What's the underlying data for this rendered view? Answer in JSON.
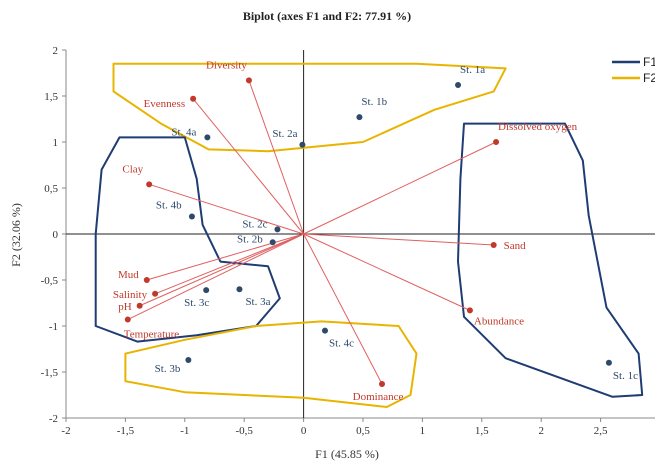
{
  "chart_data": {
    "type": "scatter",
    "title": "Biplot (axes F1 and F2: 77.91 %)",
    "xlabel": "F1 (45.85 %)",
    "ylabel": "F2 (32.06 %)",
    "xlim": [
      -2,
      3
    ],
    "ylim": [
      -2,
      2
    ],
    "xticks": [
      "-2",
      "-1,5",
      "-1",
      "-0,5",
      "0",
      "0,5",
      "1",
      "1,5",
      "2",
      "2,5"
    ],
    "yticks": [
      "2",
      "1,5",
      "1",
      "0,5",
      "0",
      "-0,5",
      "-1",
      "-1,5",
      "-2"
    ],
    "grid": false,
    "legend": {
      "position": "top-right",
      "entries": [
        {
          "name": "F1",
          "color": "#1f3c73"
        },
        {
          "name": "F2",
          "color": "#e8b400"
        }
      ]
    },
    "colors": {
      "stations": "#2e4a6b",
      "variables": "#c0392b",
      "vectors": "#e06060",
      "group_blue": "#1f3c73",
      "group_yellow": "#e8b400"
    },
    "stations": [
      {
        "name": "St. 1a",
        "x": 1.3,
        "y": 1.62
      },
      {
        "name": "St. 1b",
        "x": 0.47,
        "y": 1.27
      },
      {
        "name": "St. 1c",
        "x": 2.57,
        "y": -1.4
      },
      {
        "name": "St. 2a",
        "x": -0.01,
        "y": 0.97
      },
      {
        "name": "St. 2b",
        "x": -0.26,
        "y": -0.09
      },
      {
        "name": "St. 2c",
        "x": -0.22,
        "y": 0.05
      },
      {
        "name": "St. 3a",
        "x": -0.54,
        "y": -0.6
      },
      {
        "name": "St. 3b",
        "x": -0.97,
        "y": -1.37
      },
      {
        "name": "St. 3c",
        "x": -0.82,
        "y": -0.61
      },
      {
        "name": "St. 4a",
        "x": -0.81,
        "y": 1.05
      },
      {
        "name": "St. 4b",
        "x": -0.94,
        "y": 0.19
      },
      {
        "name": "St. 4c",
        "x": 0.18,
        "y": -1.05
      }
    ],
    "variables": [
      {
        "name": "Diversity",
        "x": -0.46,
        "y": 1.67
      },
      {
        "name": "Evenness",
        "x": -0.93,
        "y": 1.47
      },
      {
        "name": "Dissolved oxygen",
        "x": 1.62,
        "y": 1.0
      },
      {
        "name": "Clay",
        "x": -1.3,
        "y": 0.54
      },
      {
        "name": "Sand",
        "x": 1.6,
        "y": -0.12
      },
      {
        "name": "Mud",
        "x": -1.32,
        "y": -0.5
      },
      {
        "name": "Salinity",
        "x": -1.25,
        "y": -0.65
      },
      {
        "name": "pH",
        "x": -1.38,
        "y": -0.78
      },
      {
        "name": "Temperature",
        "x": -1.48,
        "y": -0.93
      },
      {
        "name": "Abundance",
        "x": 1.4,
        "y": -0.83
      },
      {
        "name": "Dominance",
        "x": 0.66,
        "y": -1.63
      }
    ]
  }
}
